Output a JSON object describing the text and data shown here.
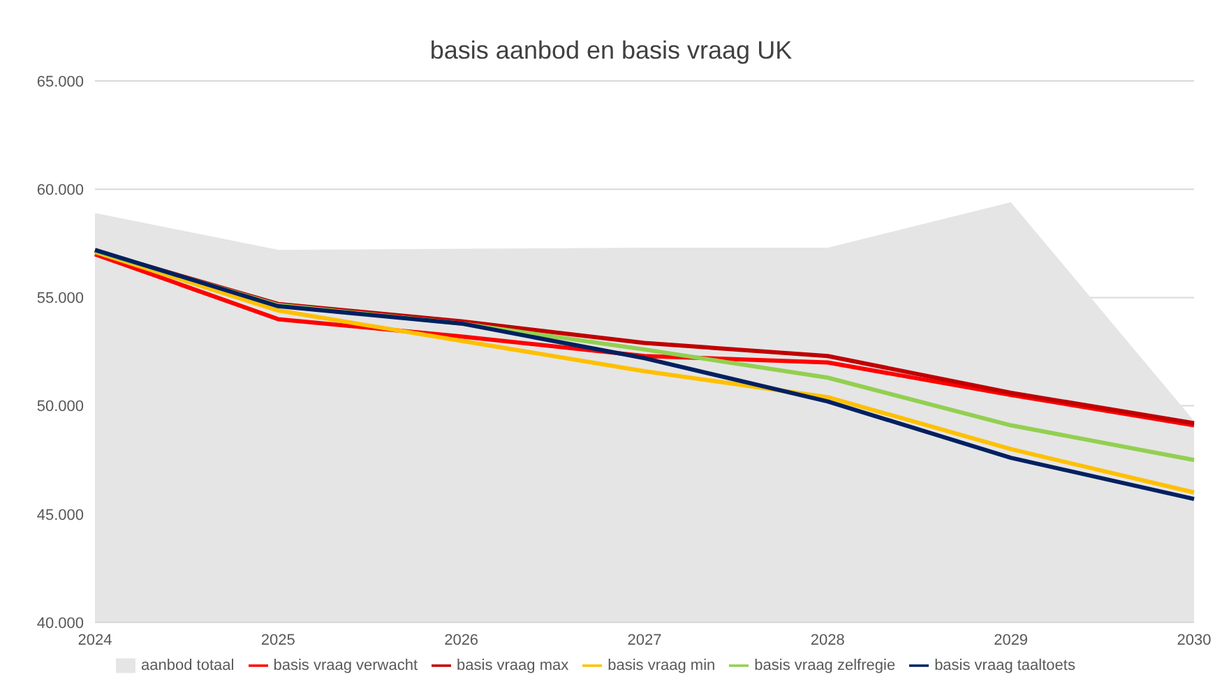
{
  "chart_data": {
    "type": "line",
    "title": "basis aanbod en basis vraag UK",
    "categories": [
      "2024",
      "2025",
      "2026",
      "2027",
      "2028",
      "2029",
      "2030"
    ],
    "series": [
      {
        "name": "aanbod totaal",
        "type": "area",
        "color": "#e5e5e5",
        "values": [
          58900,
          57200,
          57250,
          57300,
          57300,
          59400,
          49300
        ]
      },
      {
        "name": "basis vraag verwacht",
        "color": "#ff0000",
        "values": [
          57000,
          54000,
          53200,
          52300,
          52000,
          50500,
          49100
        ]
      },
      {
        "name": "basis vraag max",
        "color": "#c00000",
        "values": [
          57150,
          54700,
          53900,
          52900,
          52300,
          50600,
          49200
        ]
      },
      {
        "name": "basis vraag min",
        "color": "#ffc000",
        "values": [
          57100,
          54400,
          53000,
          51600,
          50400,
          48000,
          46000
        ]
      },
      {
        "name": "basis vraag zelfregie",
        "color": "#92d050",
        "values": [
          57150,
          54650,
          53800,
          52600,
          51300,
          49100,
          47500
        ]
      },
      {
        "name": "basis vraag taaltoets",
        "color": "#002060",
        "values": [
          57200,
          54600,
          53800,
          52200,
          50200,
          47600,
          45700
        ]
      }
    ],
    "ylim": [
      40000,
      65000
    ],
    "yticks": [
      {
        "value": 40000,
        "label": "40.000"
      },
      {
        "value": 45000,
        "label": "45.000"
      },
      {
        "value": 50000,
        "label": "50.000"
      },
      {
        "value": 55000,
        "label": "55.000"
      },
      {
        "value": 60000,
        "label": "60.000"
      },
      {
        "value": 65000,
        "label": "65.000"
      }
    ],
    "grid": "y",
    "legend": "bottom",
    "marker": "none",
    "line_style": "solid"
  }
}
